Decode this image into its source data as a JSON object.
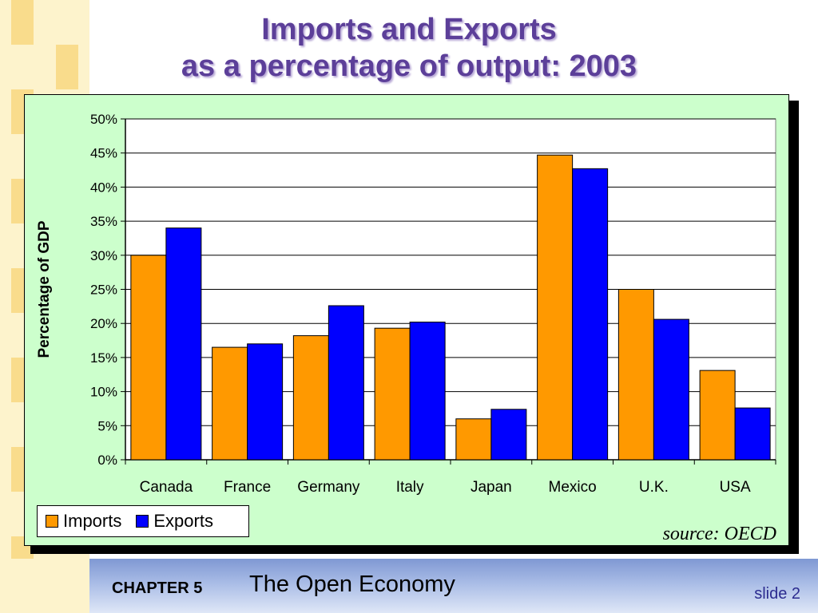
{
  "slide": {
    "title_line1": "Imports and Exports",
    "title_line2": "as a percentage of output:  2003",
    "chapter_label": "CHAPTER 5",
    "chapter_title": "The Open Economy",
    "slide_number": "slide 2",
    "source": "source:  OECD"
  },
  "colors": {
    "imports": "#ff9900",
    "exports": "#0000ff",
    "chart_background": "#ccffcc",
    "plot_background": "#ffffff",
    "title": "#5c3f99"
  },
  "chart_data": {
    "type": "bar",
    "title": "Imports and Exports as a percentage of output:  2003",
    "xlabel": "",
    "ylabel": "Percentage of GDP",
    "categories": [
      "Canada",
      "France",
      "Germany",
      "Italy",
      "Japan",
      "Mexico",
      "U.K.",
      "USA"
    ],
    "series": [
      {
        "name": "Imports",
        "values": [
          30,
          16.5,
          18.2,
          19.3,
          6,
          44.7,
          25,
          13.1
        ]
      },
      {
        "name": "Exports",
        "values": [
          34,
          17,
          22.6,
          20.2,
          7.4,
          42.7,
          20.6,
          7.6
        ]
      }
    ],
    "ylim": [
      0,
      50
    ],
    "ytick_values": [
      0,
      5,
      10,
      15,
      20,
      25,
      30,
      35,
      40,
      45,
      50
    ],
    "ytick_labels": [
      "0%",
      "5%",
      "10%",
      "15%",
      "20%",
      "25%",
      "30%",
      "35%",
      "40%",
      "45%",
      "50%"
    ],
    "grid": true,
    "legend_position": "bottom-left"
  }
}
